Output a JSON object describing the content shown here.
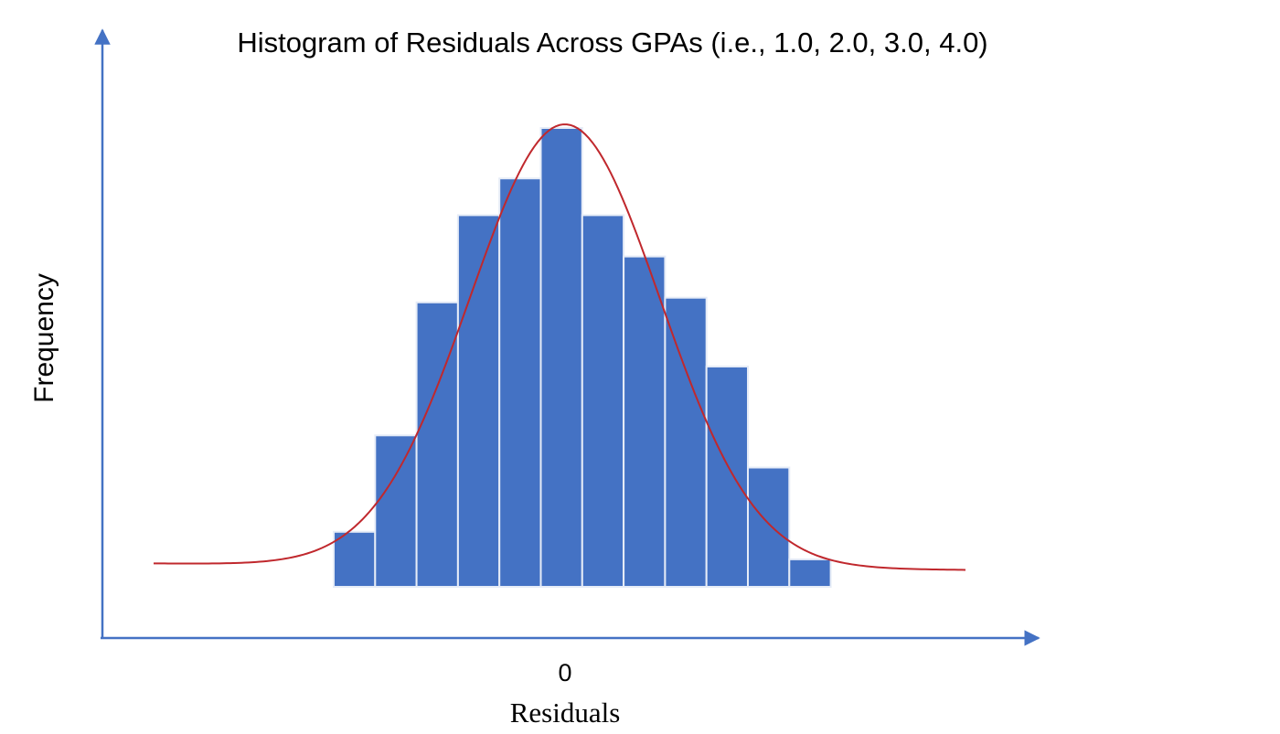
{
  "chart_data": {
    "type": "bar",
    "title": "Histogram of Residuals Across GPAs (i.e., 1.0, 2.0, 3.0, 4.0)",
    "xlabel": "Residuals",
    "ylabel": "Frequency",
    "x_ticks": [
      {
        "value": 0,
        "label": "0"
      }
    ],
    "values": [
      12,
      33,
      62,
      81,
      89,
      100,
      81,
      72,
      63,
      48,
      26,
      6
    ],
    "fit_curve": "normal",
    "grid": false,
    "legend": "none",
    "colors": {
      "bar": "#4472C4",
      "bar_edge": "#E6ECF7",
      "curve": "#C0282D",
      "axis": "#4472C4"
    }
  }
}
